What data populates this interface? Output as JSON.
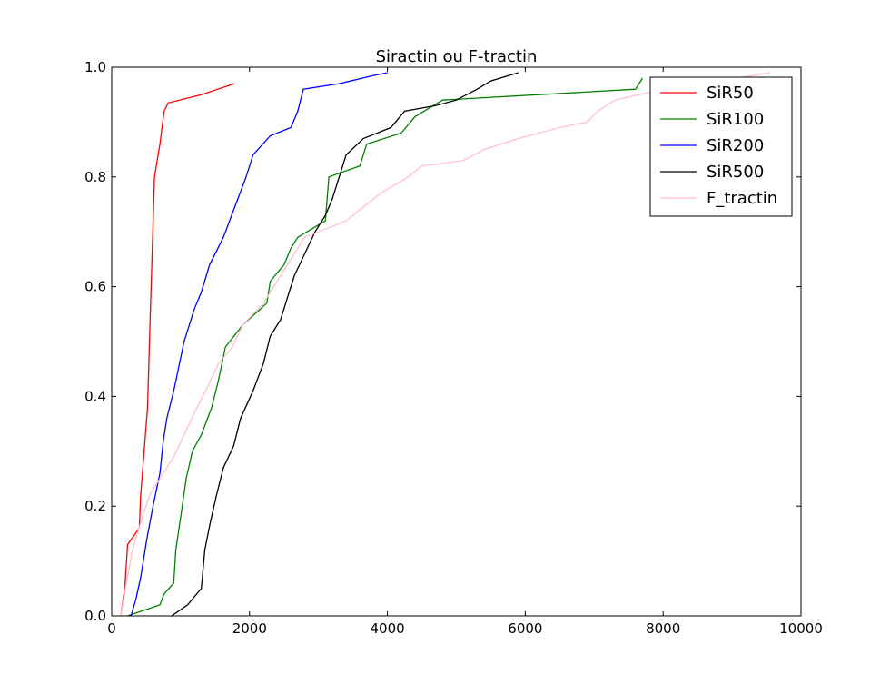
{
  "chart_data": {
    "type": "line",
    "title": "Siractin ou F-tractin",
    "xlabel": "",
    "ylabel": "",
    "xlim": [
      0,
      10000
    ],
    "ylim": [
      0,
      1.0
    ],
    "xticks": [
      "0",
      "2000",
      "4000",
      "6000",
      "8000",
      "10000"
    ],
    "yticks": [
      "0.0",
      "0.2",
      "0.4",
      "0.6",
      "0.8",
      "1.0"
    ],
    "grid": false,
    "legend_position": "top-right",
    "series": [
      {
        "name": "SiR50",
        "color": "#ff0000",
        "points": [
          [
            130,
            0
          ],
          [
            190,
            0.05
          ],
          [
            230,
            0.13
          ],
          [
            400,
            0.16
          ],
          [
            420,
            0.22
          ],
          [
            470,
            0.3
          ],
          [
            520,
            0.38
          ],
          [
            560,
            0.55
          ],
          [
            620,
            0.8
          ],
          [
            700,
            0.86
          ],
          [
            760,
            0.92
          ],
          [
            820,
            0.935
          ],
          [
            1300,
            0.95
          ],
          [
            1780,
            0.97
          ]
        ]
      },
      {
        "name": "SiR100",
        "color": "#008000",
        "points": [
          [
            230,
            0
          ],
          [
            700,
            0.02
          ],
          [
            760,
            0.04
          ],
          [
            900,
            0.06
          ],
          [
            930,
            0.12
          ],
          [
            1000,
            0.18
          ],
          [
            1080,
            0.25
          ],
          [
            1170,
            0.3
          ],
          [
            1300,
            0.33
          ],
          [
            1450,
            0.38
          ],
          [
            1550,
            0.43
          ],
          [
            1650,
            0.49
          ],
          [
            1900,
            0.53
          ],
          [
            2250,
            0.57
          ],
          [
            2300,
            0.61
          ],
          [
            2500,
            0.64
          ],
          [
            2600,
            0.67
          ],
          [
            2700,
            0.69
          ],
          [
            3100,
            0.72
          ],
          [
            3150,
            0.8
          ],
          [
            3600,
            0.82
          ],
          [
            3700,
            0.86
          ],
          [
            4200,
            0.88
          ],
          [
            4400,
            0.91
          ],
          [
            4800,
            0.94
          ],
          [
            7600,
            0.96
          ],
          [
            7700,
            0.98
          ]
        ]
      },
      {
        "name": "SiR200",
        "color": "#0000ff",
        "points": [
          [
            280,
            0
          ],
          [
            350,
            0.03
          ],
          [
            420,
            0.07
          ],
          [
            510,
            0.14
          ],
          [
            600,
            0.2
          ],
          [
            700,
            0.26
          ],
          [
            750,
            0.32
          ],
          [
            800,
            0.36
          ],
          [
            900,
            0.41
          ],
          [
            1050,
            0.5
          ],
          [
            1200,
            0.56
          ],
          [
            1300,
            0.59
          ],
          [
            1420,
            0.64
          ],
          [
            1620,
            0.69
          ],
          [
            1800,
            0.75
          ],
          [
            1950,
            0.8
          ],
          [
            2050,
            0.84
          ],
          [
            2300,
            0.875
          ],
          [
            2600,
            0.89
          ],
          [
            2700,
            0.92
          ],
          [
            2780,
            0.96
          ],
          [
            3300,
            0.97
          ],
          [
            3800,
            0.985
          ],
          [
            4000,
            0.99
          ]
        ]
      },
      {
        "name": "SiR500",
        "color": "#000000",
        "points": [
          [
            870,
            0
          ],
          [
            1100,
            0.02
          ],
          [
            1300,
            0.05
          ],
          [
            1350,
            0.12
          ],
          [
            1430,
            0.17
          ],
          [
            1520,
            0.22
          ],
          [
            1620,
            0.27
          ],
          [
            1770,
            0.31
          ],
          [
            1870,
            0.36
          ],
          [
            2050,
            0.41
          ],
          [
            2200,
            0.46
          ],
          [
            2300,
            0.51
          ],
          [
            2450,
            0.54
          ],
          [
            2550,
            0.58
          ],
          [
            2650,
            0.62
          ],
          [
            2800,
            0.66
          ],
          [
            2950,
            0.7
          ],
          [
            3100,
            0.73
          ],
          [
            3200,
            0.76
          ],
          [
            3300,
            0.8
          ],
          [
            3400,
            0.84
          ],
          [
            3650,
            0.87
          ],
          [
            4050,
            0.89
          ],
          [
            4250,
            0.92
          ],
          [
            4700,
            0.93
          ],
          [
            5000,
            0.94
          ],
          [
            5300,
            0.96
          ],
          [
            5500,
            0.975
          ],
          [
            5900,
            0.99
          ]
        ]
      },
      {
        "name": "F_tractin",
        "color": "#ffc0cb",
        "points": [
          [
            130,
            0
          ],
          [
            200,
            0.05
          ],
          [
            300,
            0.12
          ],
          [
            420,
            0.17
          ],
          [
            550,
            0.22
          ],
          [
            700,
            0.25
          ],
          [
            900,
            0.29
          ],
          [
            1050,
            0.33
          ],
          [
            1200,
            0.37
          ],
          [
            1400,
            0.42
          ],
          [
            1550,
            0.46
          ],
          [
            1750,
            0.49
          ],
          [
            1900,
            0.53
          ],
          [
            2200,
            0.57
          ],
          [
            2450,
            0.62
          ],
          [
            2600,
            0.65
          ],
          [
            2800,
            0.69
          ],
          [
            3000,
            0.7
          ],
          [
            3400,
            0.72
          ],
          [
            3600,
            0.74
          ],
          [
            3900,
            0.77
          ],
          [
            4300,
            0.8
          ],
          [
            4500,
            0.82
          ],
          [
            5100,
            0.83
          ],
          [
            5400,
            0.85
          ],
          [
            5900,
            0.87
          ],
          [
            6500,
            0.89
          ],
          [
            6900,
            0.9
          ],
          [
            7050,
            0.92
          ],
          [
            7300,
            0.94
          ],
          [
            8000,
            0.96
          ],
          [
            8800,
            0.975
          ],
          [
            9300,
            0.985
          ],
          [
            9550,
            0.99
          ]
        ]
      }
    ]
  }
}
